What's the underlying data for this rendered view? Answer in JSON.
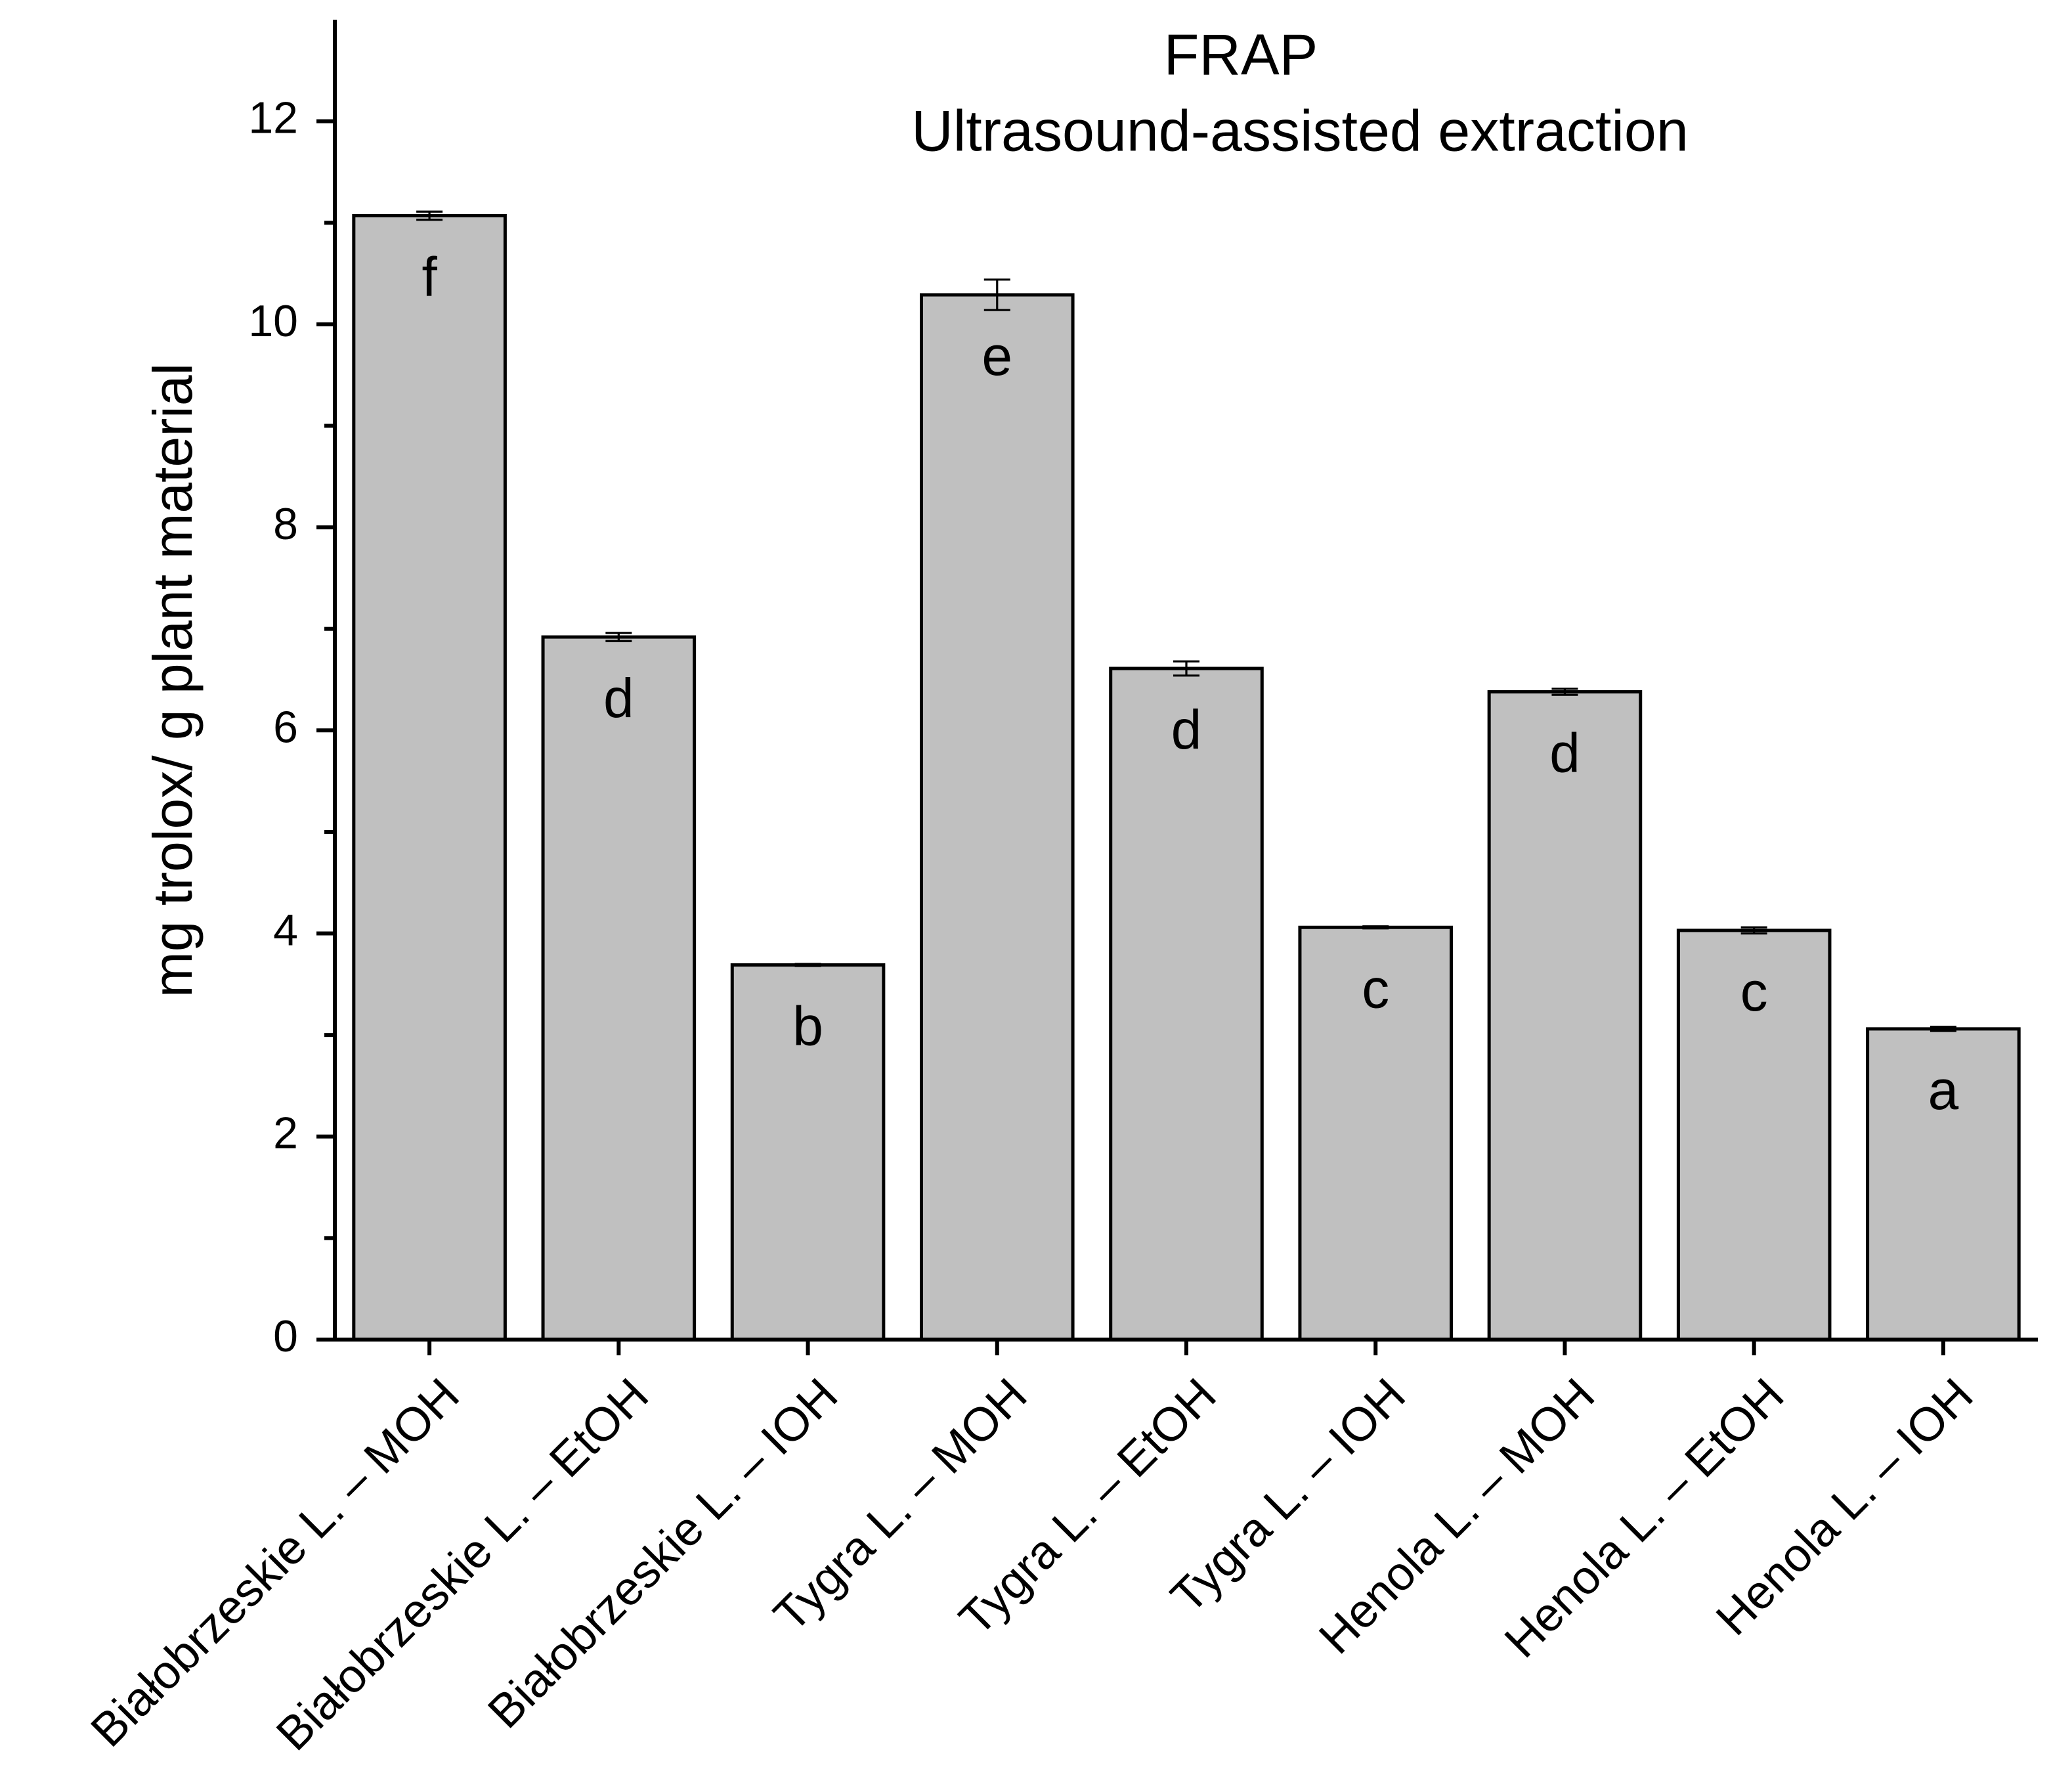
{
  "chart_data": {
    "type": "bar",
    "title": "FRAP",
    "subtitle": "Ultrasound-assisted extraction",
    "y_label": "mg trolox/ g plant material",
    "categories": [
      "Białobrzeskie L. – MOH",
      "Białobrzeskie L. – EtOH",
      "Białobrzeskie L. – IOH",
      "Tygra L. – MOH",
      "Tygra L. – EtOH",
      "Tygra L. – IOH",
      "Henola L. – MOH",
      "Henola L. – EtOH",
      "Henola L. – IOH"
    ],
    "values": [
      11.07,
      6.92,
      3.69,
      10.29,
      6.61,
      4.06,
      6.38,
      4.03,
      3.06
    ],
    "errors": [
      0.04,
      0.04,
      0.01,
      0.15,
      0.07,
      0.01,
      0.03,
      0.03,
      0.02
    ],
    "letters": [
      "f",
      "d",
      "b",
      "e",
      "d",
      "c",
      "d",
      "c",
      "a"
    ],
    "color": "#c0c0c0",
    "ylim": [
      0,
      13
    ],
    "yticks": [
      0,
      2,
      4,
      6,
      8,
      10,
      12
    ],
    "minor_yticks": [
      1,
      3,
      5,
      7,
      9,
      11
    ],
    "grid": false
  }
}
